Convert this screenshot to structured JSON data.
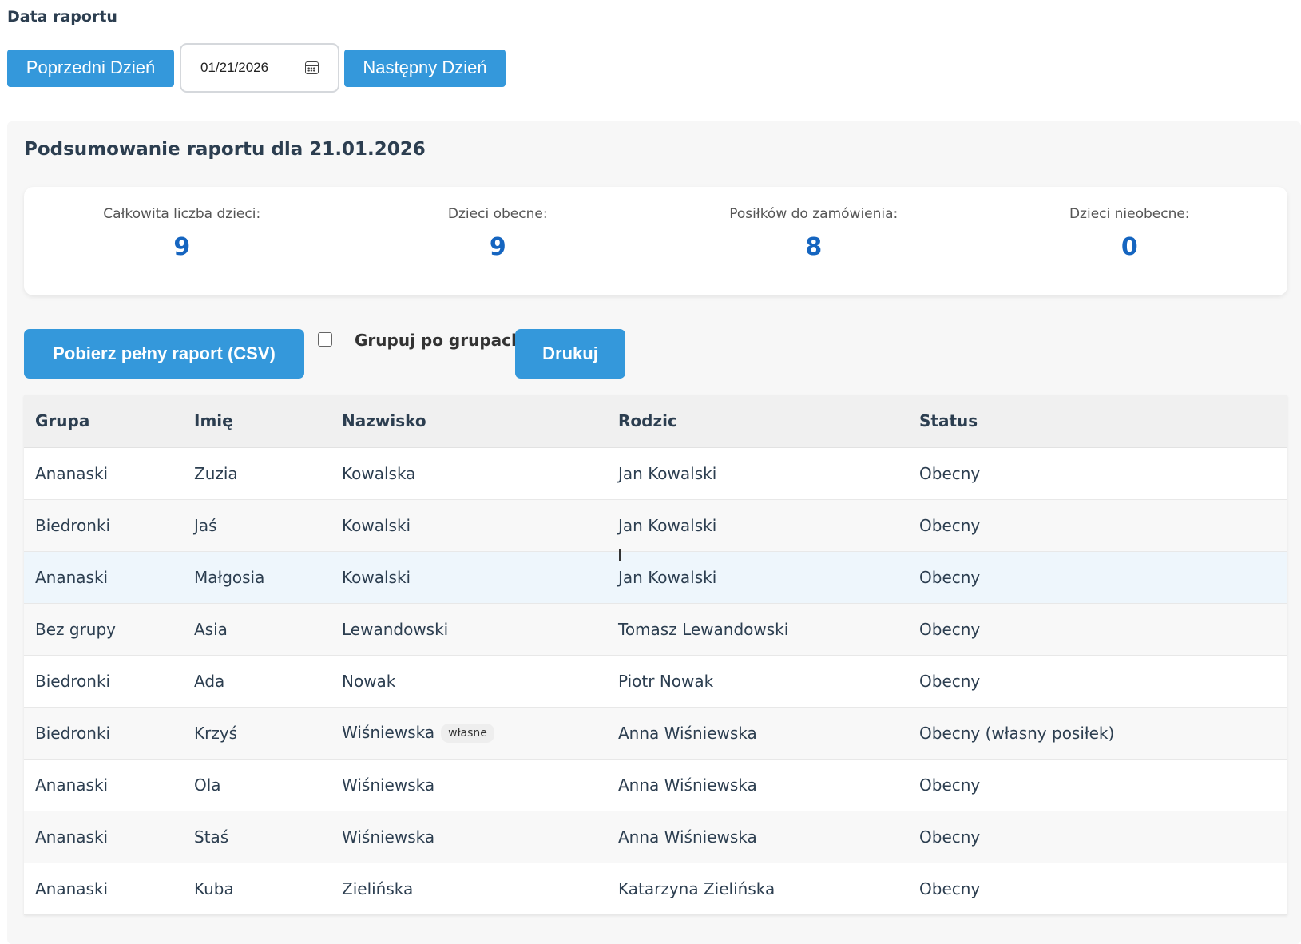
{
  "date_section": {
    "label": "Data raportu",
    "prev_button": "Poprzedni Dzień",
    "date_value": "01/21/2026",
    "next_button": "Następny Dzień"
  },
  "summary": {
    "title": "Podsumowanie raportu dla 21.01.2026",
    "stats": [
      {
        "label": "Całkowita liczba dzieci:",
        "value": "9"
      },
      {
        "label": "Dzieci obecne:",
        "value": "9"
      },
      {
        "label": "Posiłków do zamówienia:",
        "value": "8"
      },
      {
        "label": "Dzieci nieobecne:",
        "value": "0"
      }
    ]
  },
  "actions": {
    "csv_button": "Pobierz pełny raport (CSV)",
    "group_checkbox_label": "Grupuj po grupach",
    "group_checked": false,
    "print_button": "Drukuj"
  },
  "table": {
    "headers": [
      "Grupa",
      "Imię",
      "Nazwisko",
      "Rodzic",
      "Status"
    ],
    "rows": [
      {
        "group": "Ananaski",
        "first": "Zuzia",
        "last": "Kowalska",
        "parent": "Jan Kowalski",
        "status": "Obecny",
        "tag": ""
      },
      {
        "group": "Biedronki",
        "first": "Jaś",
        "last": "Kowalski",
        "parent": "Jan Kowalski",
        "status": "Obecny",
        "tag": ""
      },
      {
        "group": "Ananaski",
        "first": "Małgosia",
        "last": "Kowalski",
        "parent": "Jan Kowalski",
        "status": "Obecny",
        "tag": ""
      },
      {
        "group": "Bez grupy",
        "first": "Asia",
        "last": "Lewandowski",
        "parent": "Tomasz Lewandowski",
        "status": "Obecny",
        "tag": ""
      },
      {
        "group": "Biedronki",
        "first": "Ada",
        "last": "Nowak",
        "parent": "Piotr Nowak",
        "status": "Obecny",
        "tag": ""
      },
      {
        "group": "Biedronki",
        "first": "Krzyś",
        "last": "Wiśniewska",
        "parent": "Anna Wiśniewska",
        "status": "Obecny (własny posiłek)",
        "tag": "własne"
      },
      {
        "group": "Ananaski",
        "first": "Ola",
        "last": "Wiśniewska",
        "parent": "Anna Wiśniewska",
        "status": "Obecny",
        "tag": ""
      },
      {
        "group": "Ananaski",
        "first": "Staś",
        "last": "Wiśniewska",
        "parent": "Anna Wiśniewska",
        "status": "Obecny",
        "tag": ""
      },
      {
        "group": "Ananaski",
        "first": "Kuba",
        "last": "Zielińska",
        "parent": "Katarzyna Zielińska",
        "status": "Obecny",
        "tag": ""
      }
    ],
    "hovered_row": 2
  },
  "colors": {
    "accent": "#3498db",
    "stat_value": "#1565c0",
    "text": "#2c3e50"
  },
  "icons": [
    "calendar-icon",
    "text-cursor-icon"
  ]
}
